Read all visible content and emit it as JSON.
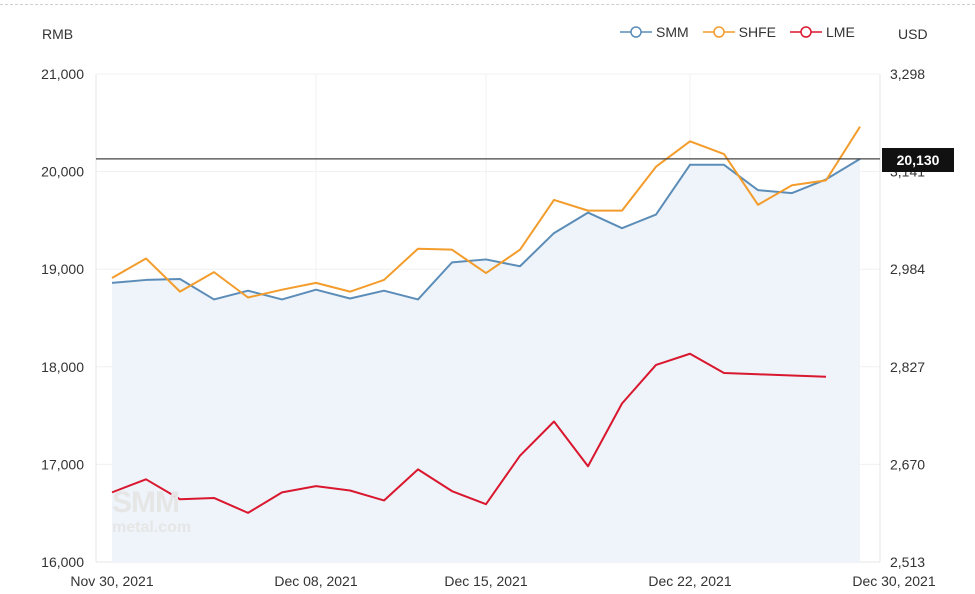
{
  "chart_data": {
    "type": "line",
    "left_axis_label": "RMB",
    "right_axis_label": "USD",
    "x_tick_labels": [
      "Nov 30, 2021",
      "Dec 08, 2021",
      "Dec 15, 2021",
      "Dec 22, 2021",
      "Dec 30, 2021"
    ],
    "x_tick_index": [
      0,
      6,
      11,
      17,
      23
    ],
    "left_ticks": [
      16000,
      17000,
      18000,
      19000,
      20000,
      21000
    ],
    "left_tick_labels": [
      "16,000",
      "17,000",
      "18,000",
      "19,000",
      "20,000",
      "21,000"
    ],
    "ylim_left": [
      16000,
      21000
    ],
    "right_tick_labels": [
      "2,513",
      "2,670",
      "2,827",
      "2,984",
      "3,141",
      "3,298"
    ],
    "ylim_right": [
      2513,
      3298
    ],
    "reference_line": {
      "value": 20130,
      "label": "20,130"
    },
    "grid": true,
    "legend_position": "top-right",
    "series": [
      {
        "name": "SMM",
        "axis": "left",
        "color": "#5b8db8",
        "area": true,
        "values": [
          18860,
          18890,
          18900,
          18690,
          18780,
          18690,
          18790,
          18700,
          18780,
          18690,
          19070,
          19100,
          19030,
          19370,
          19580,
          19420,
          19560,
          20070,
          20070,
          19810,
          19780,
          19920,
          20130
        ]
      },
      {
        "name": "SHFE",
        "axis": "left",
        "color": "#f39c2c",
        "area": false,
        "values": [
          18910,
          19110,
          18770,
          18970,
          18710,
          18790,
          18860,
          18770,
          18890,
          19210,
          19200,
          18960,
          19200,
          19710,
          19600,
          19600,
          20050,
          20310,
          20180,
          19660,
          19860,
          19910,
          20460
        ]
      },
      {
        "name": "LME",
        "axis": "right",
        "color": "#d9172f",
        "area": false,
        "values": [
          2625,
          2646,
          2614,
          2616,
          2592,
          2625,
          2635,
          2628,
          2612,
          2662,
          2627,
          2606,
          2684,
          2739,
          2667,
          2768,
          2830,
          2848,
          2817,
          2815,
          2813,
          2811
        ]
      }
    ]
  }
}
